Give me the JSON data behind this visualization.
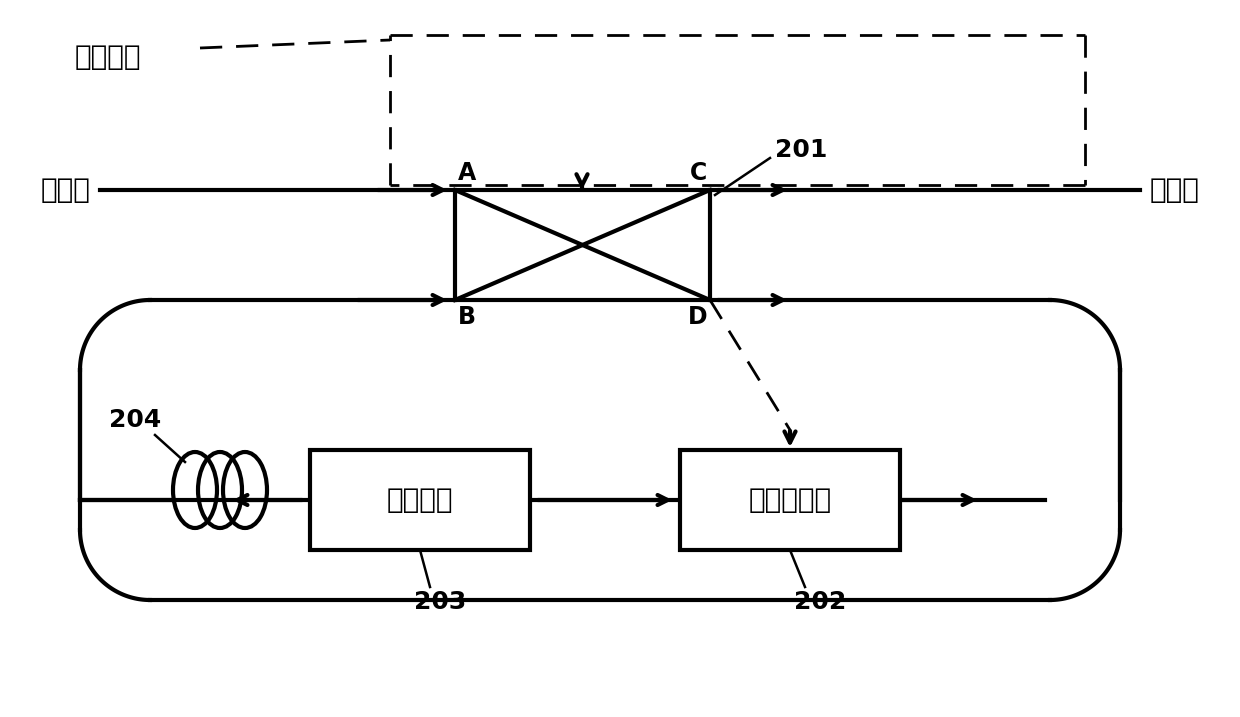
{
  "bg_color": "#ffffff",
  "trigger_label": "触发信号",
  "input_label": "输入光",
  "output_label": "输出光",
  "coupler_number": "201",
  "aom_label": "声光移频器",
  "aom_number": "202",
  "amp_label": "光放大器",
  "amp_number": "203",
  "coil_number": "204",
  "corners": [
    "A",
    "B",
    "C",
    "D"
  ],
  "font_size_chinese": 20,
  "font_size_label": 18,
  "lw_main": 3.0,
  "lw_dash": 2.0
}
